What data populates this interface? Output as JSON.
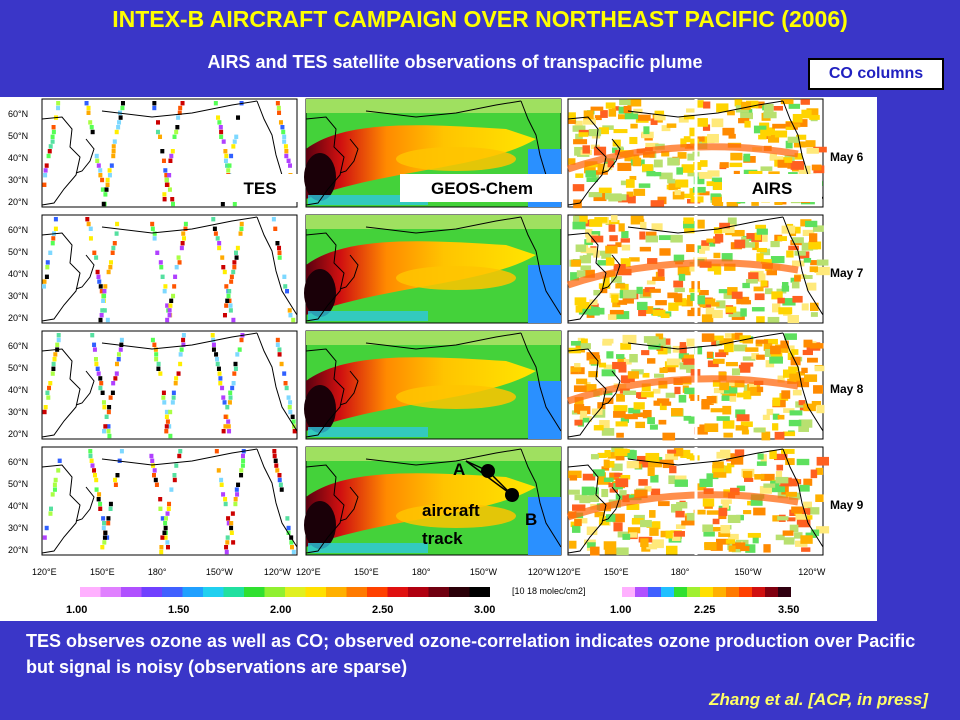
{
  "title": "INTEX-B AIRCRAFT CAMPAIGN OVER NORTHEAST PACIFIC (2006)",
  "subtitle": "AIRS and TES satellite observations of transpacific plume",
  "co_label": "CO columns",
  "panels": {
    "tes": "TES",
    "geos": "GEOS-Chem",
    "airs": "AIRS"
  },
  "dates": [
    "May 6",
    "May 7",
    "May 8",
    "May 9"
  ],
  "lat_labels": [
    "60°N",
    "50°N",
    "40°N",
    "30°N",
    "20°N"
  ],
  "lon_labels": [
    "120°E",
    "150°E",
    "180°",
    "150°W",
    "120°W"
  ],
  "track": {
    "a": "A",
    "b": "B",
    "line1": "aircraft",
    "line2": "track"
  },
  "colorbar_left": {
    "ticks": [
      "1.00",
      "1.50",
      "2.00",
      "2.50",
      "3.00"
    ]
  },
  "colorbar_right": {
    "ticks": [
      "1.00",
      "2.25",
      "3.50"
    ]
  },
  "unit": "[10 18 molec/cm2]",
  "bottom_text": "TES observes ozone as well as CO; observed ozone-correlation indicates ozone production over Pacific but signal is noisy (observations are sparse)",
  "citation": "Zhang et al. [ACP, in press]",
  "colors": {
    "background": "#3a36c8",
    "title": "#ffff00",
    "citation": "#ffff66"
  }
}
